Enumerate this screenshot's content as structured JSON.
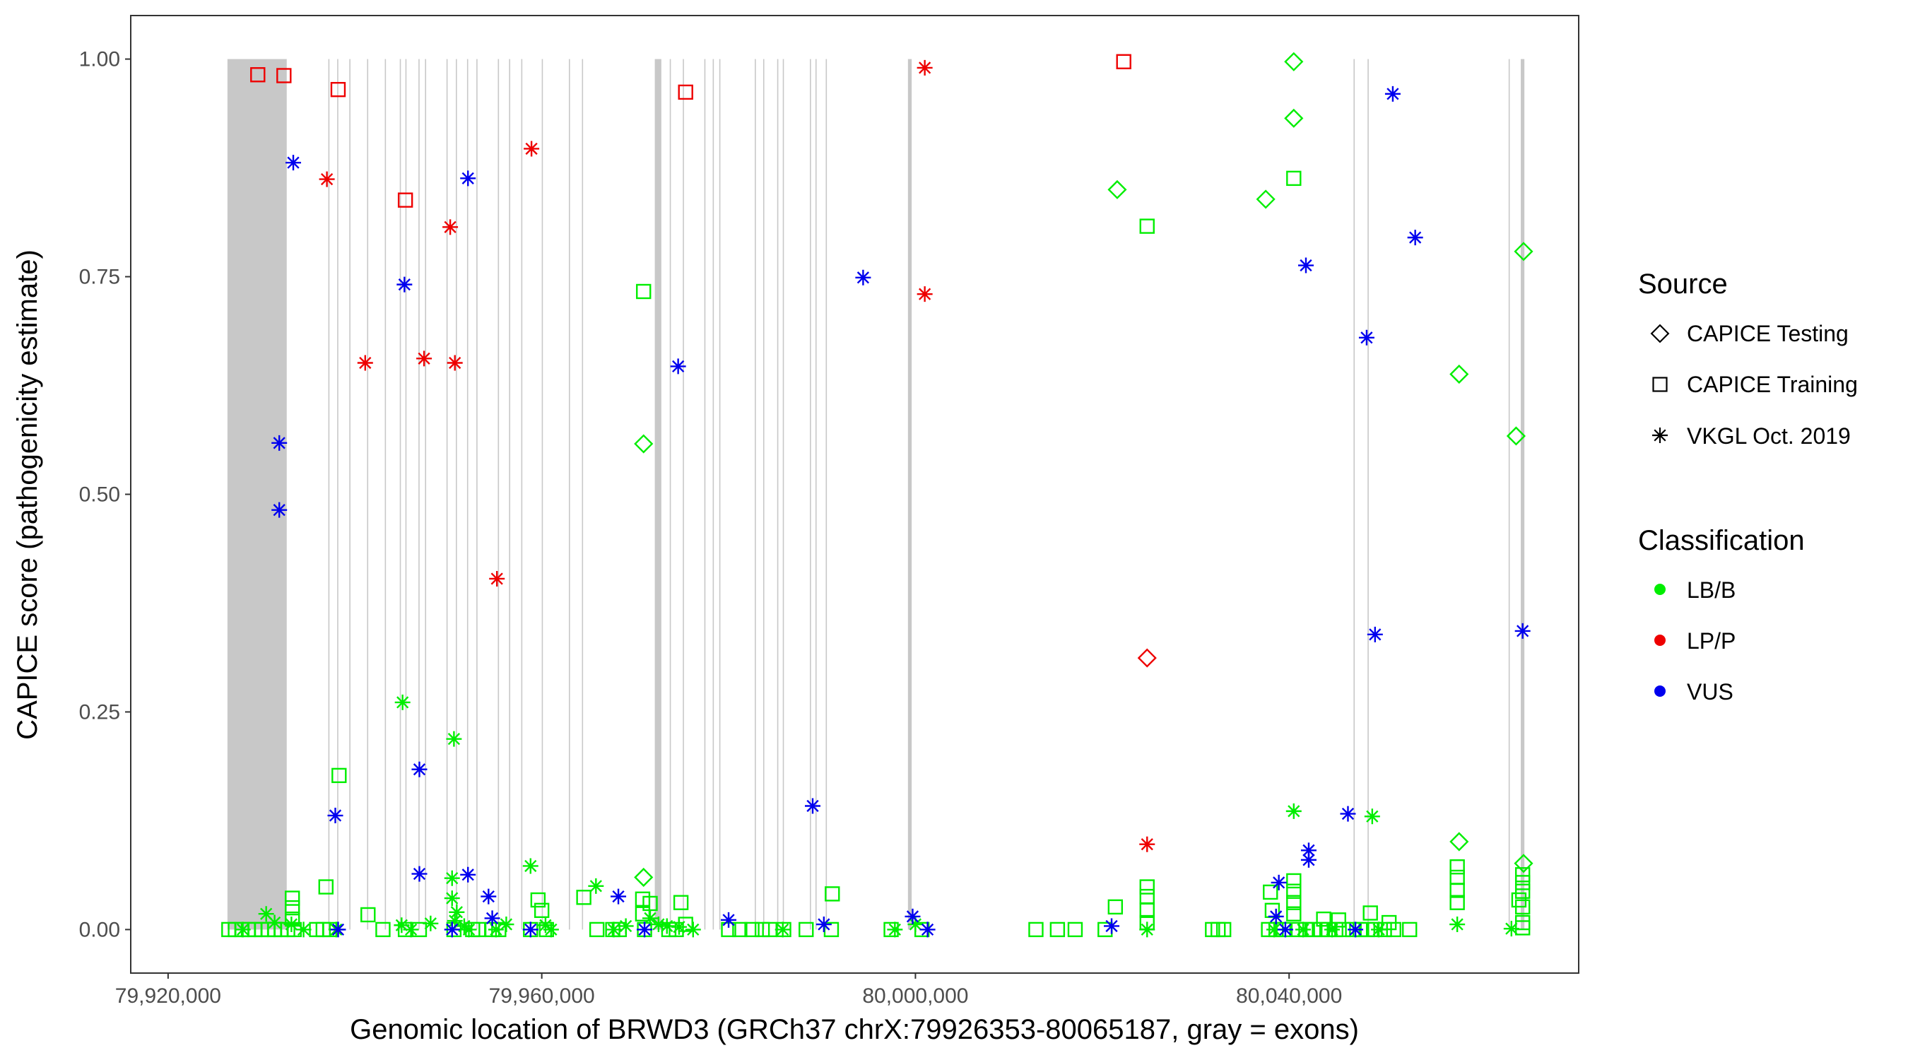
{
  "chart_data": {
    "type": "scatter",
    "xlabel": "Genomic location of BRWD3 (GRCh37 chrX:79926353-80065187, gray = exons)",
    "ylabel": "CAPICE score (pathogenicity estimate)",
    "xlim": [
      79916000,
      80071000
    ],
    "ylim": [
      -0.05,
      1.05
    ],
    "x_ticks": [
      79920000,
      79960000,
      80000000,
      80040000
    ],
    "x_tick_labels": [
      "79,920,000",
      "79,960,000",
      "80,000,000",
      "80,040,000"
    ],
    "y_ticks": [
      0,
      0.25,
      0.5,
      0.75,
      1.0
    ],
    "y_tick_labels": [
      "0.00",
      "0.25",
      "0.50",
      "0.75",
      "1.00"
    ],
    "grid": false,
    "exons": [
      [
        79926353,
        79932700
      ],
      [
        79937150,
        79937250
      ],
      [
        79938100,
        79938200
      ],
      [
        79939400,
        79939500
      ],
      [
        79941300,
        79941400
      ],
      [
        79943200,
        79943300
      ],
      [
        79944800,
        79944900
      ],
      [
        79945400,
        79945500
      ],
      [
        79946800,
        79946900
      ],
      [
        79947500,
        79947600
      ],
      [
        79949800,
        79949900
      ],
      [
        79950800,
        79950900
      ],
      [
        79952000,
        79952100
      ],
      [
        79953000,
        79953100
      ],
      [
        79955300,
        79955400
      ],
      [
        79956500,
        79956600
      ],
      [
        79957800,
        79957900
      ],
      [
        79960000,
        79960100
      ],
      [
        79962900,
        79963000
      ],
      [
        79964300,
        79964400
      ],
      [
        79972100,
        79972800
      ],
      [
        79973700,
        79973800
      ],
      [
        79975100,
        79975200
      ],
      [
        79977400,
        79977500
      ],
      [
        79978300,
        79978400
      ],
      [
        79979000,
        79979100
      ],
      [
        79982800,
        79982900
      ],
      [
        79983700,
        79983800
      ],
      [
        79985200,
        79985300
      ],
      [
        79985800,
        79985900
      ],
      [
        79988700,
        79988800
      ],
      [
        79989300,
        79989400
      ],
      [
        79990400,
        79990500
      ],
      [
        79999200,
        79999600
      ],
      [
        80046900,
        80047000
      ],
      [
        80048400,
        80048500
      ],
      [
        80063500,
        80063600
      ],
      [
        80064800,
        80065187
      ]
    ],
    "series": [
      {
        "name": "LB/B - CAPICE Testing",
        "source": "CAPICE Testing",
        "classification": "LB/B",
        "points": [
          [
            79970900,
            0.558
          ],
          [
            79970900,
            0.06
          ],
          [
            80021600,
            0.85
          ],
          [
            80037500,
            0.839
          ],
          [
            80040500,
            0.997
          ],
          [
            80040500,
            0.932
          ],
          [
            80058200,
            0.638
          ],
          [
            80058200,
            0.101
          ],
          [
            80064300,
            0.567
          ],
          [
            80065100,
            0.779
          ],
          [
            80065100,
            0.076
          ]
        ]
      },
      {
        "name": "LB/B - CAPICE Training",
        "source": "CAPICE Training",
        "classification": "LB/B",
        "points": [
          [
            79970900,
            0.733
          ],
          [
            79938300,
            0.177
          ],
          [
            79936900,
            0.049
          ],
          [
            79933300,
            0.036
          ],
          [
            79933300,
            0.025
          ],
          [
            79933300,
            0.012
          ],
          [
            79941400,
            0.017
          ],
          [
            79959600,
            0.034
          ],
          [
            79960000,
            0.022
          ],
          [
            79964500,
            0.037
          ],
          [
            79970800,
            0.035
          ],
          [
            79970800,
            0.018
          ],
          [
            79971600,
            0.03
          ],
          [
            79974900,
            0.031
          ],
          [
            79975400,
            0.006
          ],
          [
            79991100,
            0.041
          ],
          [
            80024800,
            0.808
          ],
          [
            80040500,
            0.863
          ],
          [
            80021400,
            0.026
          ],
          [
            80024800,
            0.049
          ],
          [
            80024800,
            0.038
          ],
          [
            80024800,
            0.022
          ],
          [
            80024800,
            0.008
          ],
          [
            80040500,
            0.056
          ],
          [
            80040500,
            0.044
          ],
          [
            80040500,
            0.031
          ],
          [
            80040500,
            0.018
          ],
          [
            80038000,
            0.043
          ],
          [
            80038200,
            0.022
          ],
          [
            80043700,
            0.012
          ],
          [
            80045300,
            0.011
          ],
          [
            80048700,
            0.019
          ],
          [
            80050700,
            0.008
          ],
          [
            80058000,
            0.072
          ],
          [
            80058000,
            0.06
          ],
          [
            80058000,
            0.045
          ],
          [
            80058000,
            0.031
          ],
          [
            80064600,
            0.034
          ],
          [
            80065000,
            0.063
          ],
          [
            80065000,
            0.054
          ],
          [
            80065000,
            0.044
          ],
          [
            80065000,
            0.026
          ],
          [
            80065000,
            0.008
          ],
          [
            80065000,
            0.002
          ],
          [
            79926500,
            0.0
          ],
          [
            79927200,
            0.0
          ],
          [
            79927900,
            0.0
          ],
          [
            79928600,
            0.0
          ],
          [
            79929300,
            0.0
          ],
          [
            79930000,
            0.0
          ],
          [
            79930700,
            0.0
          ],
          [
            79931400,
            0.0
          ],
          [
            79932100,
            0.0
          ],
          [
            79932800,
            0.0
          ],
          [
            79933500,
            0.0
          ],
          [
            79935900,
            0.0
          ],
          [
            79936600,
            0.0
          ],
          [
            79937300,
            0.0
          ],
          [
            79943000,
            0.0
          ],
          [
            79945400,
            0.0
          ],
          [
            79946900,
            0.0
          ],
          [
            79950600,
            0.0
          ],
          [
            79952600,
            0.0
          ],
          [
            79953200,
            0.0
          ],
          [
            79954700,
            0.0
          ],
          [
            79955400,
            0.0
          ],
          [
            79958800,
            0.0
          ],
          [
            79960500,
            0.0
          ],
          [
            79965900,
            0.0
          ],
          [
            79967600,
            0.0
          ],
          [
            79968300,
            0.0
          ],
          [
            79971000,
            0.0
          ],
          [
            79973600,
            0.0
          ],
          [
            79974400,
            0.0
          ],
          [
            79980000,
            0.0
          ],
          [
            79981200,
            0.0
          ],
          [
            79982500,
            0.0
          ],
          [
            79983600,
            0.0
          ],
          [
            79984400,
            0.0
          ],
          [
            79985900,
            0.0
          ],
          [
            79988300,
            0.0
          ],
          [
            79991000,
            0.0
          ],
          [
            79997400,
            0.0
          ],
          [
            80000700,
            0.0
          ],
          [
            80012900,
            0.0
          ],
          [
            80015200,
            0.0
          ],
          [
            80017100,
            0.0
          ],
          [
            80020300,
            0.0
          ],
          [
            80031800,
            0.0
          ],
          [
            80032400,
            0.0
          ],
          [
            80033000,
            0.0
          ],
          [
            80037800,
            0.0
          ],
          [
            80038600,
            0.0
          ],
          [
            80039400,
            0.0
          ],
          [
            80041000,
            0.0
          ],
          [
            80041800,
            0.0
          ],
          [
            80042600,
            0.0
          ],
          [
            80043400,
            0.0
          ],
          [
            80044200,
            0.0
          ],
          [
            80045000,
            0.0
          ],
          [
            80045800,
            0.0
          ],
          [
            80046800,
            0.0
          ],
          [
            80047600,
            0.0
          ],
          [
            80048400,
            0.0
          ],
          [
            80049200,
            0.0
          ],
          [
            80050200,
            0.0
          ],
          [
            80051200,
            0.0
          ],
          [
            80052900,
            0.0
          ]
        ]
      },
      {
        "name": "LB/B - VKGL Oct. 2019",
        "source": "VKGL Oct. 2019",
        "classification": "LB/B",
        "points": [
          [
            79945100,
            0.261
          ],
          [
            79950600,
            0.219
          ],
          [
            79958800,
            0.073
          ],
          [
            79965800,
            0.05
          ],
          [
            79950400,
            0.059
          ],
          [
            79950400,
            0.036
          ],
          [
            79950900,
            0.02
          ],
          [
            79930500,
            0.018
          ],
          [
            79931400,
            0.008
          ],
          [
            79933200,
            0.006
          ],
          [
            79945000,
            0.005
          ],
          [
            79948100,
            0.007
          ],
          [
            79950700,
            0.01
          ],
          [
            79951700,
            0.004
          ],
          [
            79956200,
            0.006
          ],
          [
            79960400,
            0.005
          ],
          [
            79971600,
            0.013
          ],
          [
            79972500,
            0.006
          ],
          [
            79973400,
            0.004
          ],
          [
            79974700,
            0.003
          ],
          [
            79969000,
            0.004
          ],
          [
            80000000,
            0.006
          ],
          [
            80024800,
            0.0
          ],
          [
            80040500,
            0.136
          ],
          [
            80048900,
            0.13
          ],
          [
            80058000,
            0.006
          ],
          [
            80063800,
            0.001
          ],
          [
            79928000,
            0.0
          ],
          [
            79934500,
            0.0
          ],
          [
            79938000,
            0.0
          ],
          [
            79946000,
            0.0
          ],
          [
            79952200,
            0.0
          ],
          [
            79955100,
            0.0
          ],
          [
            79961000,
            0.0
          ],
          [
            79967700,
            0.0
          ],
          [
            79976200,
            0.0
          ],
          [
            79985800,
            0.0
          ],
          [
            79997800,
            0.0
          ],
          [
            80038400,
            0.0
          ],
          [
            80041500,
            0.0
          ],
          [
            80044600,
            0.0
          ],
          [
            80049600,
            0.0
          ]
        ]
      },
      {
        "name": "LP/P - CAPICE Testing",
        "source": "CAPICE Testing",
        "classification": "LP/P",
        "points": [
          [
            80024800,
            0.312
          ]
        ]
      },
      {
        "name": "LP/P - CAPICE Training",
        "source": "CAPICE Training",
        "classification": "LP/P",
        "points": [
          [
            79929600,
            0.982
          ],
          [
            79932400,
            0.981
          ],
          [
            79938200,
            0.965
          ],
          [
            79945400,
            0.838
          ],
          [
            79975400,
            0.962
          ],
          [
            80022300,
            0.997
          ]
        ]
      },
      {
        "name": "LP/P - VKGL Oct. 2019",
        "source": "VKGL Oct. 2019",
        "classification": "LP/P",
        "points": [
          [
            79937000,
            0.862
          ],
          [
            79941100,
            0.651
          ],
          [
            79947400,
            0.656
          ],
          [
            79950200,
            0.807
          ],
          [
            79950700,
            0.651
          ],
          [
            79955200,
            0.403
          ],
          [
            79958900,
            0.897
          ],
          [
            80001000,
            0.99
          ],
          [
            80001000,
            0.73
          ],
          [
            80024800,
            0.098
          ]
        ]
      },
      {
        "name": "VUS - VKGL Oct. 2019",
        "source": "VKGL Oct. 2019",
        "classification": "VUS",
        "points": [
          [
            79931900,
            0.559
          ],
          [
            79931900,
            0.482
          ],
          [
            79933400,
            0.881
          ],
          [
            79937900,
            0.131
          ],
          [
            79945300,
            0.741
          ],
          [
            79946900,
            0.184
          ],
          [
            79946900,
            0.064
          ],
          [
            79952100,
            0.863
          ],
          [
            79952100,
            0.063
          ],
          [
            79954300,
            0.038
          ],
          [
            79954700,
            0.013
          ],
          [
            79968200,
            0.038
          ],
          [
            79974600,
            0.647
          ],
          [
            79980000,
            0.011
          ],
          [
            79989000,
            0.142
          ],
          [
            79990200,
            0.006
          ],
          [
            79994400,
            0.749
          ],
          [
            79999700,
            0.015
          ],
          [
            80021000,
            0.004
          ],
          [
            80038900,
            0.054
          ],
          [
            80038600,
            0.015
          ],
          [
            80041800,
            0.763
          ],
          [
            80042100,
            0.091
          ],
          [
            80042100,
            0.08
          ],
          [
            80046300,
            0.133
          ],
          [
            80048300,
            0.68
          ],
          [
            80049200,
            0.339
          ],
          [
            80051100,
            0.96
          ],
          [
            80053500,
            0.795
          ],
          [
            80065000,
            0.343
          ],
          [
            79938200,
            0.0
          ],
          [
            79950400,
            0.0
          ],
          [
            79958800,
            0.0
          ],
          [
            79971000,
            0.0
          ],
          [
            80001300,
            0.0
          ],
          [
            80039600,
            0.0
          ],
          [
            80047100,
            0.0
          ]
        ]
      }
    ],
    "legend": {
      "source_title": "Source",
      "source_entries": [
        "CAPICE Testing",
        "CAPICE Training",
        "VKGL Oct. 2019"
      ],
      "classification_title": "Classification",
      "classification_entries": [
        "LB/B",
        "LP/P",
        "VUS"
      ],
      "placement": "right"
    },
    "colors": {
      "LB/B": "#00ee00",
      "LP/P": "#ee0000",
      "VUS": "#0000ee",
      "exon": "#c8c8c8",
      "legend_key": "#000000"
    }
  }
}
